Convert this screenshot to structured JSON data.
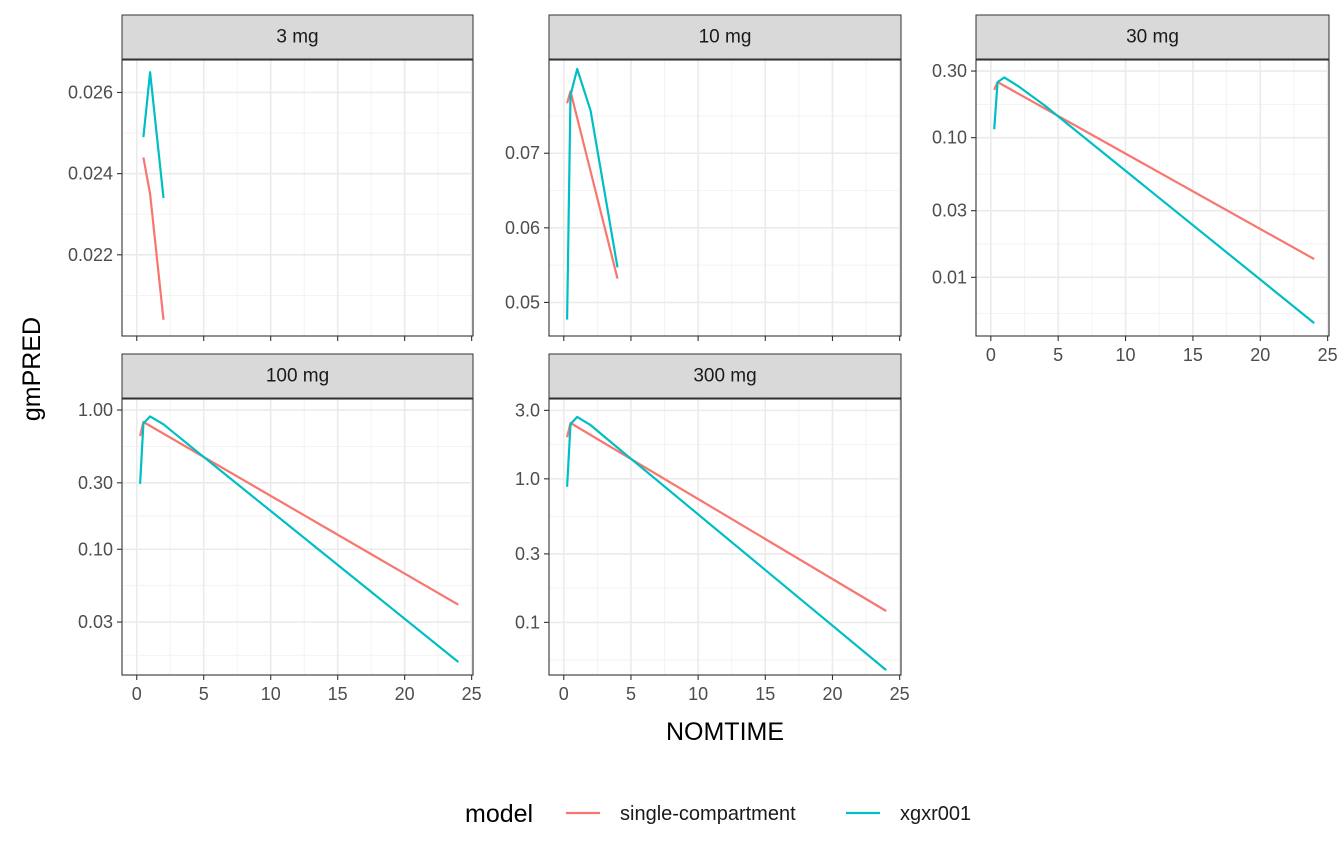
{
  "chart_data": {
    "type": "line",
    "xlabel": "NOMTIME",
    "ylabel": "gmPRED",
    "legend": {
      "title": "model",
      "placement": "bottom",
      "entries": [
        {
          "name": "single-compartment",
          "color": "#F8766D"
        },
        {
          "name": "xgxr001",
          "color": "#00BFC4"
        }
      ]
    },
    "grid": true,
    "panels": [
      {
        "label": "3 mg",
        "yscale": "linear",
        "ylim": [
          0.02,
          0.0268
        ],
        "yticks": [
          {
            "v": 0.022,
            "t": "0.022"
          },
          {
            "v": 0.024,
            "t": "0.024"
          },
          {
            "v": 0.026,
            "t": "0.026"
          }
        ],
        "yminor": [
          0.021,
          0.023,
          0.025
        ],
        "series": [
          {
            "name": "single-compartment",
            "x": [
              0.5,
              1,
              2
            ],
            "y": [
              0.0244,
              0.0235,
              0.0204
            ]
          },
          {
            "name": "xgxr001",
            "x": [
              0.5,
              1,
              2
            ],
            "y": [
              0.0249,
              0.0265,
              0.0234
            ]
          }
        ]
      },
      {
        "label": "10 mg",
        "yscale": "linear",
        "ylim": [
          0.0455,
          0.0825
        ],
        "yticks": [
          {
            "v": 0.05,
            "t": "0.05"
          },
          {
            "v": 0.06,
            "t": "0.06"
          },
          {
            "v": 0.07,
            "t": "0.07"
          }
        ],
        "yminor": [
          0.055,
          0.065,
          0.075
        ],
        "series": [
          {
            "name": "single-compartment",
            "x": [
              0.25,
              0.5,
              4
            ],
            "y": [
              0.0767,
              0.0783,
              0.0532
            ]
          },
          {
            "name": "xgxr001",
            "x": [
              0.25,
              0.5,
              1,
              2,
              4
            ],
            "y": [
              0.0477,
              0.0778,
              0.0813,
              0.0757,
              0.0547
            ]
          }
        ]
      },
      {
        "label": "30 mg",
        "yscale": "log",
        "ylim": [
          0.0038,
          0.36
        ],
        "yticks": [
          {
            "v": 0.01,
            "t": "0.01"
          },
          {
            "v": 0.03,
            "t": "0.03"
          },
          {
            "v": 0.1,
            "t": "0.10"
          },
          {
            "v": 0.3,
            "t": "0.30"
          }
        ],
        "yminor": [
          0.0055,
          0.0173,
          0.0548,
          0.173
        ],
        "series": [
          {
            "name": "single-compartment",
            "x": [
              0.25,
              0.5,
              24
            ],
            "y": [
              0.22,
              0.25,
              0.0135
            ]
          },
          {
            "name": "xgxr001",
            "x": [
              0.25,
              0.5,
              1,
              2,
              4,
              24
            ],
            "y": [
              0.115,
              0.25,
              0.27,
              0.235,
              0.17,
              0.0047
            ]
          }
        ]
      },
      {
        "label": "100 mg",
        "yscale": "log",
        "ylim": [
          0.0125,
          1.2
        ],
        "yticks": [
          {
            "v": 0.03,
            "t": "0.03"
          },
          {
            "v": 0.1,
            "t": "0.10"
          },
          {
            "v": 0.3,
            "t": "0.30"
          },
          {
            "v": 1.0,
            "t": "1.00"
          }
        ],
        "yminor": [
          0.0173,
          0.0548,
          0.173,
          0.548
        ],
        "series": [
          {
            "name": "single-compartment",
            "x": [
              0.25,
              0.5,
              24
            ],
            "y": [
              0.65,
              0.82,
              0.04
            ]
          },
          {
            "name": "xgxr001",
            "x": [
              0.25,
              0.5,
              1,
              2,
              4,
              24
            ],
            "y": [
              0.295,
              0.8,
              0.9,
              0.79,
              0.55,
              0.0155
            ]
          }
        ]
      },
      {
        "label": "300 mg",
        "yscale": "log",
        "ylim": [
          0.043,
          3.6
        ],
        "yticks": [
          {
            "v": 0.1,
            "t": "0.1"
          },
          {
            "v": 0.3,
            "t": "0.3"
          },
          {
            "v": 1.0,
            "t": "1.0"
          },
          {
            "v": 3.0,
            "t": "3.0"
          }
        ],
        "yminor": [
          0.0548,
          0.173,
          0.548,
          1.73
        ],
        "series": [
          {
            "name": "single-compartment",
            "x": [
              0.25,
              0.5,
              24
            ],
            "y": [
              1.95,
              2.45,
              0.12
            ]
          },
          {
            "name": "xgxr001",
            "x": [
              0.25,
              0.5,
              1,
              2,
              4,
              24
            ],
            "y": [
              0.88,
              2.4,
              2.7,
              2.37,
              1.65,
              0.0465
            ]
          }
        ]
      }
    ],
    "xlim": [
      -1.1,
      25.1
    ],
    "xticks": [
      0,
      5,
      10,
      15,
      20,
      25
    ],
    "xminor": [
      2.5,
      7.5,
      12.5,
      17.5,
      22.5
    ]
  }
}
